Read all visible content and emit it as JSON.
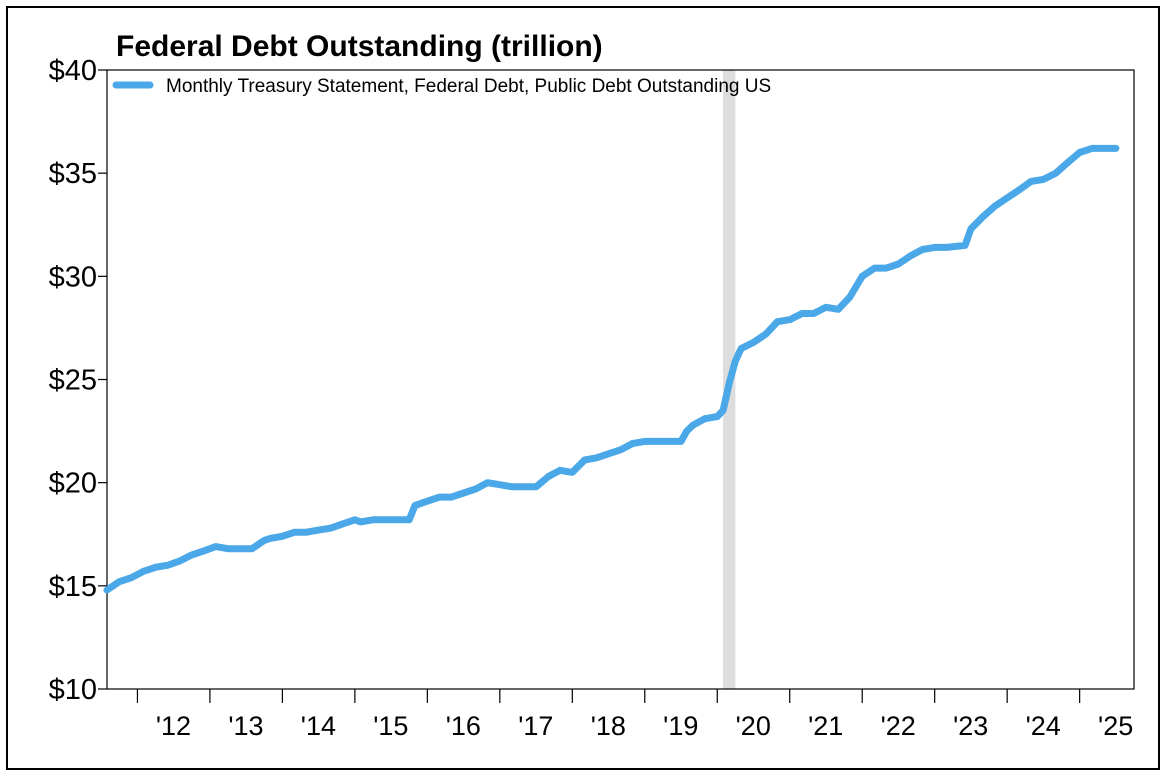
{
  "chart_data": {
    "type": "line",
    "title": "Federal Debt Outstanding (trillion)",
    "xlabel": "",
    "ylabel": "",
    "ylim": [
      10,
      40
    ],
    "xlim": [
      2011.58,
      2025.75
    ],
    "yticks": [
      {
        "value": 10,
        "label": "$10"
      },
      {
        "value": 15,
        "label": "$15"
      },
      {
        "value": 20,
        "label": "$20"
      },
      {
        "value": 25,
        "label": "$25"
      },
      {
        "value": 30,
        "label": "$30"
      },
      {
        "value": 35,
        "label": "$35"
      },
      {
        "value": 40,
        "label": "$40"
      }
    ],
    "xticks": [
      {
        "value": 2012,
        "label": "'12"
      },
      {
        "value": 2013,
        "label": "'13"
      },
      {
        "value": 2014,
        "label": "'14"
      },
      {
        "value": 2015,
        "label": "'15"
      },
      {
        "value": 2016,
        "label": "'16"
      },
      {
        "value": 2017,
        "label": "'17"
      },
      {
        "value": 2018,
        "label": "'18"
      },
      {
        "value": 2019,
        "label": "'19"
      },
      {
        "value": 2020,
        "label": "'20"
      },
      {
        "value": 2021,
        "label": "'21"
      },
      {
        "value": 2022,
        "label": "'22"
      },
      {
        "value": 2023,
        "label": "'23"
      },
      {
        "value": 2024,
        "label": "'24"
      },
      {
        "value": 2025,
        "label": "'25"
      }
    ],
    "grid": false,
    "legend_position": "top-left",
    "recession_band": {
      "start": 2020.08,
      "end": 2020.25,
      "color": "#dddddd"
    },
    "series": [
      {
        "name": "Monthly Treasury Statement, Federal Debt, Public Debt Outstanding US",
        "color": "#4aa8e8",
        "x": [
          2011.58,
          2011.75,
          2011.92,
          2012.08,
          2012.25,
          2012.42,
          2012.58,
          2012.75,
          2012.92,
          2013.08,
          2013.25,
          2013.42,
          2013.58,
          2013.75,
          2013.83,
          2014.0,
          2014.17,
          2014.33,
          2014.5,
          2014.67,
          2014.83,
          2015.0,
          2015.08,
          2015.25,
          2015.5,
          2015.75,
          2015.83,
          2016.0,
          2016.17,
          2016.33,
          2016.5,
          2016.67,
          2016.83,
          2017.0,
          2017.17,
          2017.33,
          2017.5,
          2017.67,
          2017.83,
          2018.0,
          2018.17,
          2018.33,
          2018.5,
          2018.67,
          2018.83,
          2019.0,
          2019.17,
          2019.33,
          2019.5,
          2019.58,
          2019.67,
          2019.83,
          2020.0,
          2020.08,
          2020.17,
          2020.25,
          2020.33,
          2020.5,
          2020.67,
          2020.83,
          2021.0,
          2021.17,
          2021.33,
          2021.5,
          2021.67,
          2021.83,
          2022.0,
          2022.17,
          2022.33,
          2022.5,
          2022.67,
          2022.83,
          2023.0,
          2023.17,
          2023.42,
          2023.5,
          2023.67,
          2023.83,
          2024.0,
          2024.17,
          2024.33,
          2024.5,
          2024.67,
          2024.83,
          2025.0,
          2025.17,
          2025.5
        ],
        "values": [
          14.8,
          15.2,
          15.4,
          15.7,
          15.9,
          16.0,
          16.2,
          16.5,
          16.7,
          16.9,
          16.8,
          16.8,
          16.8,
          17.2,
          17.3,
          17.4,
          17.6,
          17.6,
          17.7,
          17.8,
          18.0,
          18.2,
          18.1,
          18.2,
          18.2,
          18.2,
          18.9,
          19.1,
          19.3,
          19.3,
          19.5,
          19.7,
          20.0,
          19.9,
          19.8,
          19.8,
          19.8,
          20.3,
          20.6,
          20.5,
          21.1,
          21.2,
          21.4,
          21.6,
          21.9,
          22.0,
          22.0,
          22.0,
          22.0,
          22.5,
          22.8,
          23.1,
          23.2,
          23.5,
          24.9,
          25.9,
          26.5,
          26.8,
          27.2,
          27.8,
          27.9,
          28.2,
          28.2,
          28.5,
          28.4,
          29.0,
          30.0,
          30.4,
          30.4,
          30.6,
          31.0,
          31.3,
          31.4,
          31.4,
          31.5,
          32.3,
          32.9,
          33.4,
          33.8,
          34.2,
          34.6,
          34.7,
          35.0,
          35.5,
          36.0,
          36.2,
          36.2
        ]
      }
    ]
  }
}
